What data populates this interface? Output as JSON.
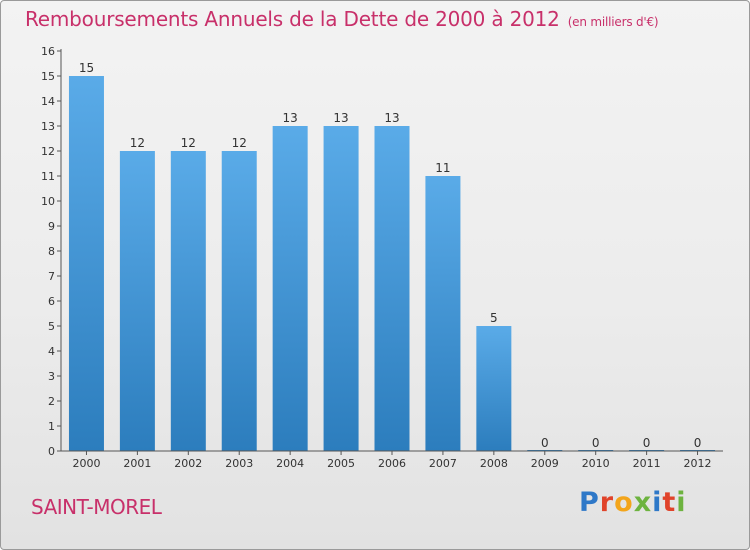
{
  "header": {
    "title": "Remboursements Annuels de la Dette de 2000 à 2012",
    "unit": "(en milliers d'€)"
  },
  "footer": {
    "place": "SAINT-MOREL",
    "logo": "Proxiti"
  },
  "colors": {
    "accent": "#c8306a",
    "bar_light": "#5aabe8",
    "bar_dark": "#2c7dbd"
  },
  "chart_data": {
    "type": "bar",
    "title": "Remboursements Annuels de la Dette de 2000 à 2012",
    "subtitle": "(en milliers d'€)",
    "categories": [
      "2000",
      "2001",
      "2002",
      "2003",
      "2004",
      "2005",
      "2006",
      "2007",
      "2008",
      "2009",
      "2010",
      "2011",
      "2012"
    ],
    "values": [
      15,
      12,
      12,
      12,
      13,
      13,
      13,
      11,
      5,
      0,
      0,
      0,
      0
    ],
    "data_labels": [
      "15",
      "12",
      "12",
      "12",
      "13",
      "13",
      "13",
      "11",
      "5",
      "0",
      "0",
      "0",
      "0"
    ],
    "yticks": [
      "0",
      "1",
      "2",
      "3",
      "4",
      "5",
      "6",
      "7",
      "8",
      "9",
      "10",
      "11",
      "12",
      "13",
      "14",
      "15",
      "16"
    ],
    "ylim": [
      0,
      16
    ],
    "xlabel": "",
    "ylabel": "",
    "grid": false,
    "legend": false
  }
}
